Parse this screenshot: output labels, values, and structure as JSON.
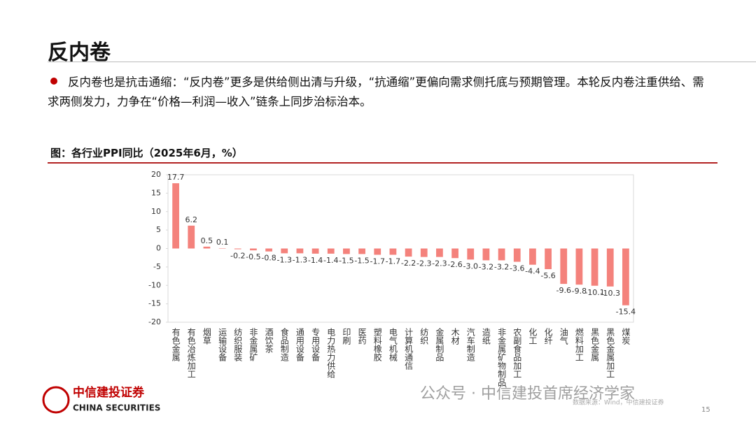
{
  "title": "反内卷",
  "bullet": "反内卷也是抗击通缩：“反内卷”更多是供给侧出清与升级，“抗通缩”更偏向需求侧托底与预期管理。本轮反内卷注重供给、需求两侧发力，力争在“价格—利润—收入”链条上同步治标治本。",
  "chart_data": {
    "type": "bar",
    "title": "图：各行业PPI同比（2025年6月，%）",
    "categories": [
      "有色金属",
      "有色冶炼加工",
      "烟草",
      "运输设备",
      "纺织服装",
      "非金属矿",
      "酒饮茶",
      "食品制造",
      "通用设备",
      "专用设备",
      "电力热力供给",
      "印刷",
      "医药",
      "塑料橡胶",
      "电气机械",
      "计算机通信",
      "纺织",
      "金属制品",
      "木材",
      "汽车制造",
      "造纸",
      "非金属矿物制品",
      "农副食品加工",
      "化工",
      "化纤",
      "油气",
      "燃料加工",
      "黑色金属",
      "黑色金属加工",
      "煤炭"
    ],
    "values": [
      17.7,
      6.2,
      0.5,
      0.1,
      -0.2,
      -0.5,
      -0.8,
      -1.3,
      -1.3,
      -1.4,
      -1.4,
      -1.5,
      -1.5,
      -1.7,
      -1.7,
      -2.2,
      -2.3,
      -2.3,
      -2.6,
      -3.0,
      -3.2,
      -3.2,
      -3.6,
      -4.4,
      -5.6,
      -9.6,
      -9.8,
      -10.1,
      -10.3,
      -15.4
    ],
    "value_labels": [
      "17.7",
      "6.2",
      "0.5",
      "0.1",
      "-0.2",
      "-0.5",
      "-0.8",
      "-1.3",
      "-1.3",
      "-1.4",
      "-1.4",
      "-1.5",
      "-1.5",
      "-1.7",
      "-1.7",
      "-2.2",
      "-2.3",
      "-2.3",
      "-2.6",
      "-3.0",
      "-3.2",
      "-3.2",
      "-3.6",
      "-4.4",
      "-5.6",
      "-9.6",
      "-9.8",
      "-10.1",
      "-10.3",
      "-15.4"
    ],
    "color": "#f4827c",
    "ylim": [
      -20,
      20
    ],
    "yticks": [
      20,
      15,
      10,
      5,
      0,
      -5,
      -10,
      -15,
      -20
    ],
    "grid": false,
    "source": "数据来源：Wind，中信建投证券"
  },
  "footer": {
    "logo": "中信建投证券",
    "logo_en": "CHINA SECURITIES",
    "watermark": "公众号 · 中信建投首席经济学家",
    "page": "15"
  }
}
